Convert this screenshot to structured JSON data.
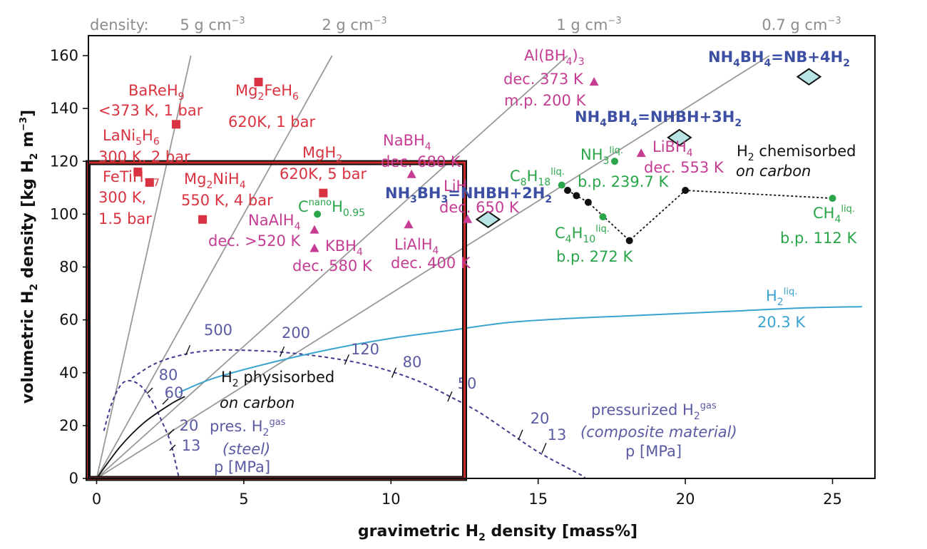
{
  "chart_data": {
    "type": "scatter",
    "xlabel": "gravimetric H₂ density [mass%]",
    "ylabel": "volumetric H₂ density [kg H₂ m⁻³]",
    "xlim": [
      0,
      26
    ],
    "ylim": [
      0,
      160
    ],
    "xticks": [
      "0",
      "5",
      "10",
      "15",
      "20",
      "25"
    ],
    "yticks": [
      "0",
      "20",
      "40",
      "60",
      "80",
      "100",
      "120",
      "140",
      "160"
    ],
    "grid": false,
    "density_label": "density:",
    "density_lines": [
      {
        "label": "5 g cm⁻³",
        "density": 5
      },
      {
        "label": "2 g cm⁻³",
        "density": 2
      },
      {
        "label": "1 g cm⁻³",
        "density": 1
      },
      {
        "label": "0.7 g cm⁻³",
        "density": 0.7
      }
    ],
    "colors": {
      "metal_hydride": "#d93341",
      "complex_hydride": "#c43d93",
      "hydrocarbon": "#2aa54a",
      "ammonia_borane": "#3d4fa3",
      "pressurized": "#5b5ba3",
      "liquid_h2": "#3ba3d0",
      "density_line": "#999999",
      "target_box": "#c92a2a"
    },
    "target_box": {
      "x": 12.5,
      "y": 119.5
    },
    "metal_hydrides": [
      {
        "x": 2.7,
        "y": 134,
        "label": [
          "BaReH",
          "9",
          "",
          "<373 K, 1 bar"
        ]
      },
      {
        "x": 5.5,
        "y": 150,
        "label": [
          "Mg",
          "2",
          "FeH",
          "6",
          "620K, 1 bar"
        ]
      },
      {
        "x": 1.4,
        "y": 116,
        "label": [
          "LaNi",
          "5",
          "H",
          "6",
          "300 K, 2 bar"
        ]
      },
      {
        "x": 1.8,
        "y": 112,
        "label": [
          "FeTiH",
          "1.7",
          "",
          "",
          "300 K,",
          "1.5 bar"
        ]
      },
      {
        "x": 3.6,
        "y": 98,
        "label": [
          "Mg",
          "2",
          "NiH",
          "4",
          "550 K, 4 bar"
        ]
      },
      {
        "x": 7.7,
        "y": 108,
        "label": [
          "MgH",
          "2",
          "",
          "",
          "620K, 5 bar"
        ]
      }
    ],
    "complex_hydrides": [
      {
        "x": 16.9,
        "y": 150,
        "label": [
          "Al(BH",
          "4",
          ")",
          "3",
          "dec. 373 K",
          "m.p. 200 K"
        ]
      },
      {
        "x": 10.7,
        "y": 115,
        "label": [
          "NaBH",
          "4",
          "dec. 680 K"
        ]
      },
      {
        "x": 7.4,
        "y": 94,
        "label": [
          "NaAlH",
          "4",
          "dec. >520 K"
        ]
      },
      {
        "x": 7.4,
        "y": 87,
        "label": [
          "KBH",
          "4",
          "dec. 580 K"
        ]
      },
      {
        "x": 10.6,
        "y": 96,
        "label": [
          "LiAlH",
          "4",
          "dec. 400 K"
        ]
      },
      {
        "x": 12.6,
        "y": 98,
        "label": [
          "LiH",
          "dec. 650 K"
        ]
      },
      {
        "x": 18.5,
        "y": 123,
        "label": [
          "LiBH",
          "4",
          "dec. 553 K"
        ]
      }
    ],
    "hydrocarbons": [
      {
        "x": 7.5,
        "y": 100,
        "label": [
          "C",
          "nano",
          "H",
          "0.95"
        ]
      },
      {
        "x": 15.8,
        "y": 111,
        "label": [
          "C",
          "8",
          "H",
          "18",
          "liq."
        ]
      },
      {
        "x": 17.6,
        "y": 120,
        "label": [
          "NH",
          "3",
          "liq.",
          "b.p. 239.7 K"
        ]
      },
      {
        "x": 17.2,
        "y": 99,
        "label": [
          "C",
          "4",
          "H",
          "10",
          "liq.",
          "b.p. 272 K"
        ]
      },
      {
        "x": 25.0,
        "y": 106,
        "label": [
          "CH",
          "4",
          "liq.",
          "b.p. 112 K"
        ]
      }
    ],
    "ammonia_borane": [
      {
        "x": 13.3,
        "y": 98,
        "label": "NH₃BH₃=NHBH+2H₂"
      },
      {
        "x": 19.8,
        "y": 129,
        "label": "NH₄BH₄=NHBH+3H₂"
      },
      {
        "x": 24.2,
        "y": 152,
        "label": "NH₄BH₄=NB+4H₂"
      }
    ],
    "chemisorbed": {
      "label": [
        "H",
        "2",
        " chemisorbed",
        "on carbon"
      ],
      "points": [
        [
          16.0,
          109
        ],
        [
          16.3,
          107
        ],
        [
          16.7,
          104.5
        ],
        [
          18.1,
          90
        ],
        [
          20.0,
          109
        ],
        [
          25.0,
          106
        ]
      ]
    },
    "physisorbed": {
      "label": [
        "H",
        "2",
        " physisorbed",
        "on carbon"
      ],
      "points": [
        [
          0,
          0
        ],
        [
          0.8,
          12
        ],
        [
          1.6,
          21
        ],
        [
          2.5,
          28
        ],
        [
          3,
          31
        ]
      ]
    },
    "liquid_h2": {
      "label": [
        "H",
        "2",
        "liq.",
        "20.3 K"
      ],
      "points": [
        [
          2.8,
          32.5
        ],
        [
          4,
          38
        ],
        [
          6,
          44
        ],
        [
          8,
          49
        ],
        [
          10,
          53
        ],
        [
          12,
          56
        ],
        [
          14,
          59
        ],
        [
          16,
          60.5
        ],
        [
          18,
          61.5
        ],
        [
          20,
          62.5
        ],
        [
          22,
          63.5
        ],
        [
          24,
          64.5
        ],
        [
          26,
          65
        ]
      ]
    },
    "pressurized_steel": {
      "label": [
        "pres. H",
        "2",
        "gas",
        "(steel)",
        "p [MPa]"
      ],
      "tick_labels": [
        "80",
        "60",
        "20",
        "13"
      ],
      "points": [
        [
          0.25,
          18
        ],
        [
          0.5,
          28
        ],
        [
          0.8,
          35
        ],
        [
          1.1,
          37
        ],
        [
          1.5,
          35
        ],
        [
          1.9,
          29
        ],
        [
          2.2,
          22
        ],
        [
          2.5,
          14
        ],
        [
          2.7,
          5
        ],
        [
          2.8,
          0
        ]
      ],
      "inner_points": [
        [
          0.3,
          20
        ],
        [
          0.6,
          31
        ],
        [
          1.0,
          37.5
        ],
        [
          1.3,
          37
        ]
      ]
    },
    "pressurized_composite": {
      "label": [
        "pressurized H",
        "2",
        "gas",
        "(composite material)",
        "p [MPa]"
      ],
      "tick_labels": [
        "500",
        "200",
        "120",
        "80",
        "50",
        "20",
        "13"
      ],
      "points": [
        [
          1.2,
          38
        ],
        [
          2,
          43.5
        ],
        [
          3,
          47
        ],
        [
          4,
          48.5
        ],
        [
          5,
          48.5
        ],
        [
          6,
          48
        ],
        [
          7,
          47
        ],
        [
          8,
          45.5
        ],
        [
          9,
          43.5
        ],
        [
          10,
          40.5
        ],
        [
          11,
          36.5
        ],
        [
          12,
          31
        ],
        [
          13,
          25
        ],
        [
          14,
          17.5
        ],
        [
          15,
          10
        ],
        [
          16,
          4
        ],
        [
          16.5,
          1
        ],
        [
          16.6,
          0
        ]
      ]
    }
  }
}
